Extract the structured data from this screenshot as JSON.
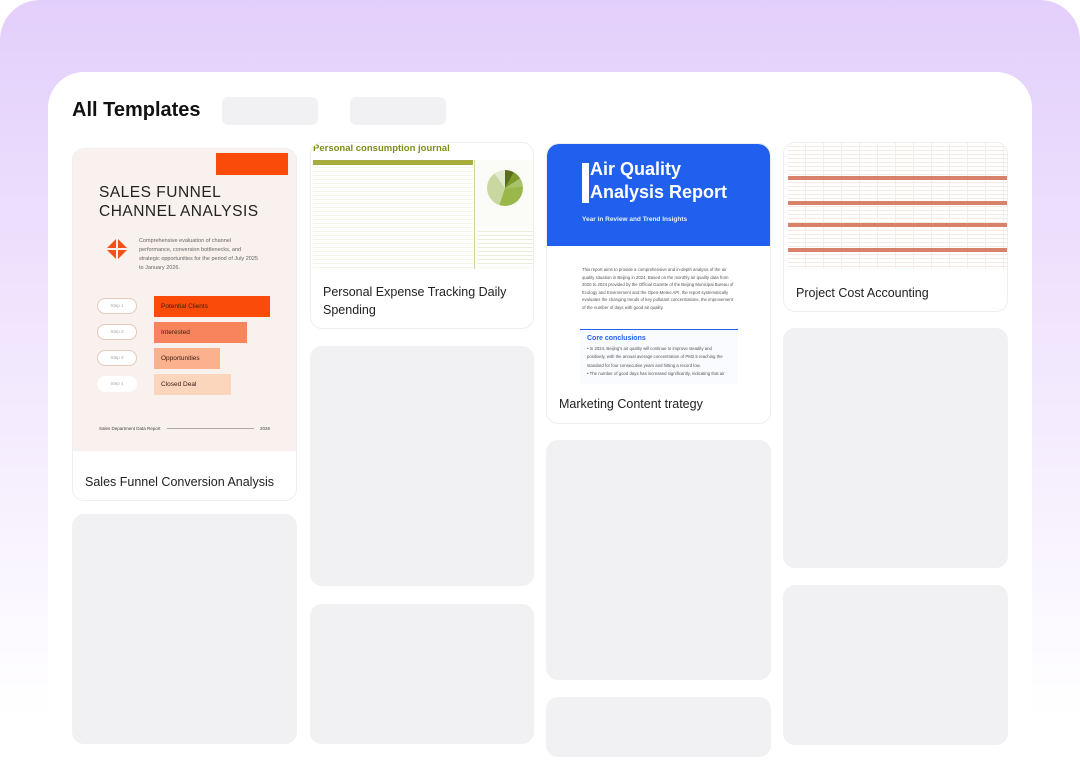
{
  "header": {
    "title": "All Templates"
  },
  "templates": [
    {
      "label": "Sales Funnel Conversion Analysis",
      "preview": {
        "title_line1": "SALES FUNNEL",
        "title_line2": "CHANNEL ANALYSIS",
        "description": "Comprehensive evaluation of channel performance, conversion bottlenecks, and strategic opportunities for the period of July 2025 to January 2026.",
        "steps": [
          {
            "step": "Step 1",
            "stage": "Potential Clients",
            "color": "#fa4b0a"
          },
          {
            "step": "Step 2",
            "stage": "Interested",
            "color": "#f7845c"
          },
          {
            "step": "Step 3",
            "stage": "Opportunities",
            "color": "#fbb18d"
          },
          {
            "step": "Step 4",
            "stage": "Closed Deal",
            "color": "#fbd6bd"
          }
        ],
        "footer_left": "Sales Department Data Report",
        "footer_right": "2026"
      }
    },
    {
      "label": "Personal Expense Tracking Daily Spending",
      "preview": {
        "title": "Personal consumption journal"
      }
    },
    {
      "label": "Marketing Content trategy",
      "preview": {
        "title_line1": "Air Quality",
        "title_line2": "Analysis Report",
        "subtitle": "Year in Review and Trend Insights",
        "body": "This report aims to provide a comprehensive and in-depth analysis of the air quality situation in Beijing in 2024. Based on the monthly air quality data from 2020 to 2024 provided by the Official Gazette of the Beijing Municipal Bureau of Ecology and Environment and the Open-Meteo API, the report systematically evaluates the changing trends of key pollutant concentrations, the improvement of the number of days with good air quality.",
        "core_title": "Core conclusions",
        "core_points": [
          "In 2024, Beijing's air quality will continue to improve steadily and positively, with the annual average concentration of PM2.5 reaching the standard for four consecutive years and hitting a record low.",
          "The number of good days has increased significantly, indicating that air"
        ],
        "accent": "#2160ee"
      }
    },
    {
      "label": "Project Cost Accounting",
      "preview": {}
    }
  ]
}
